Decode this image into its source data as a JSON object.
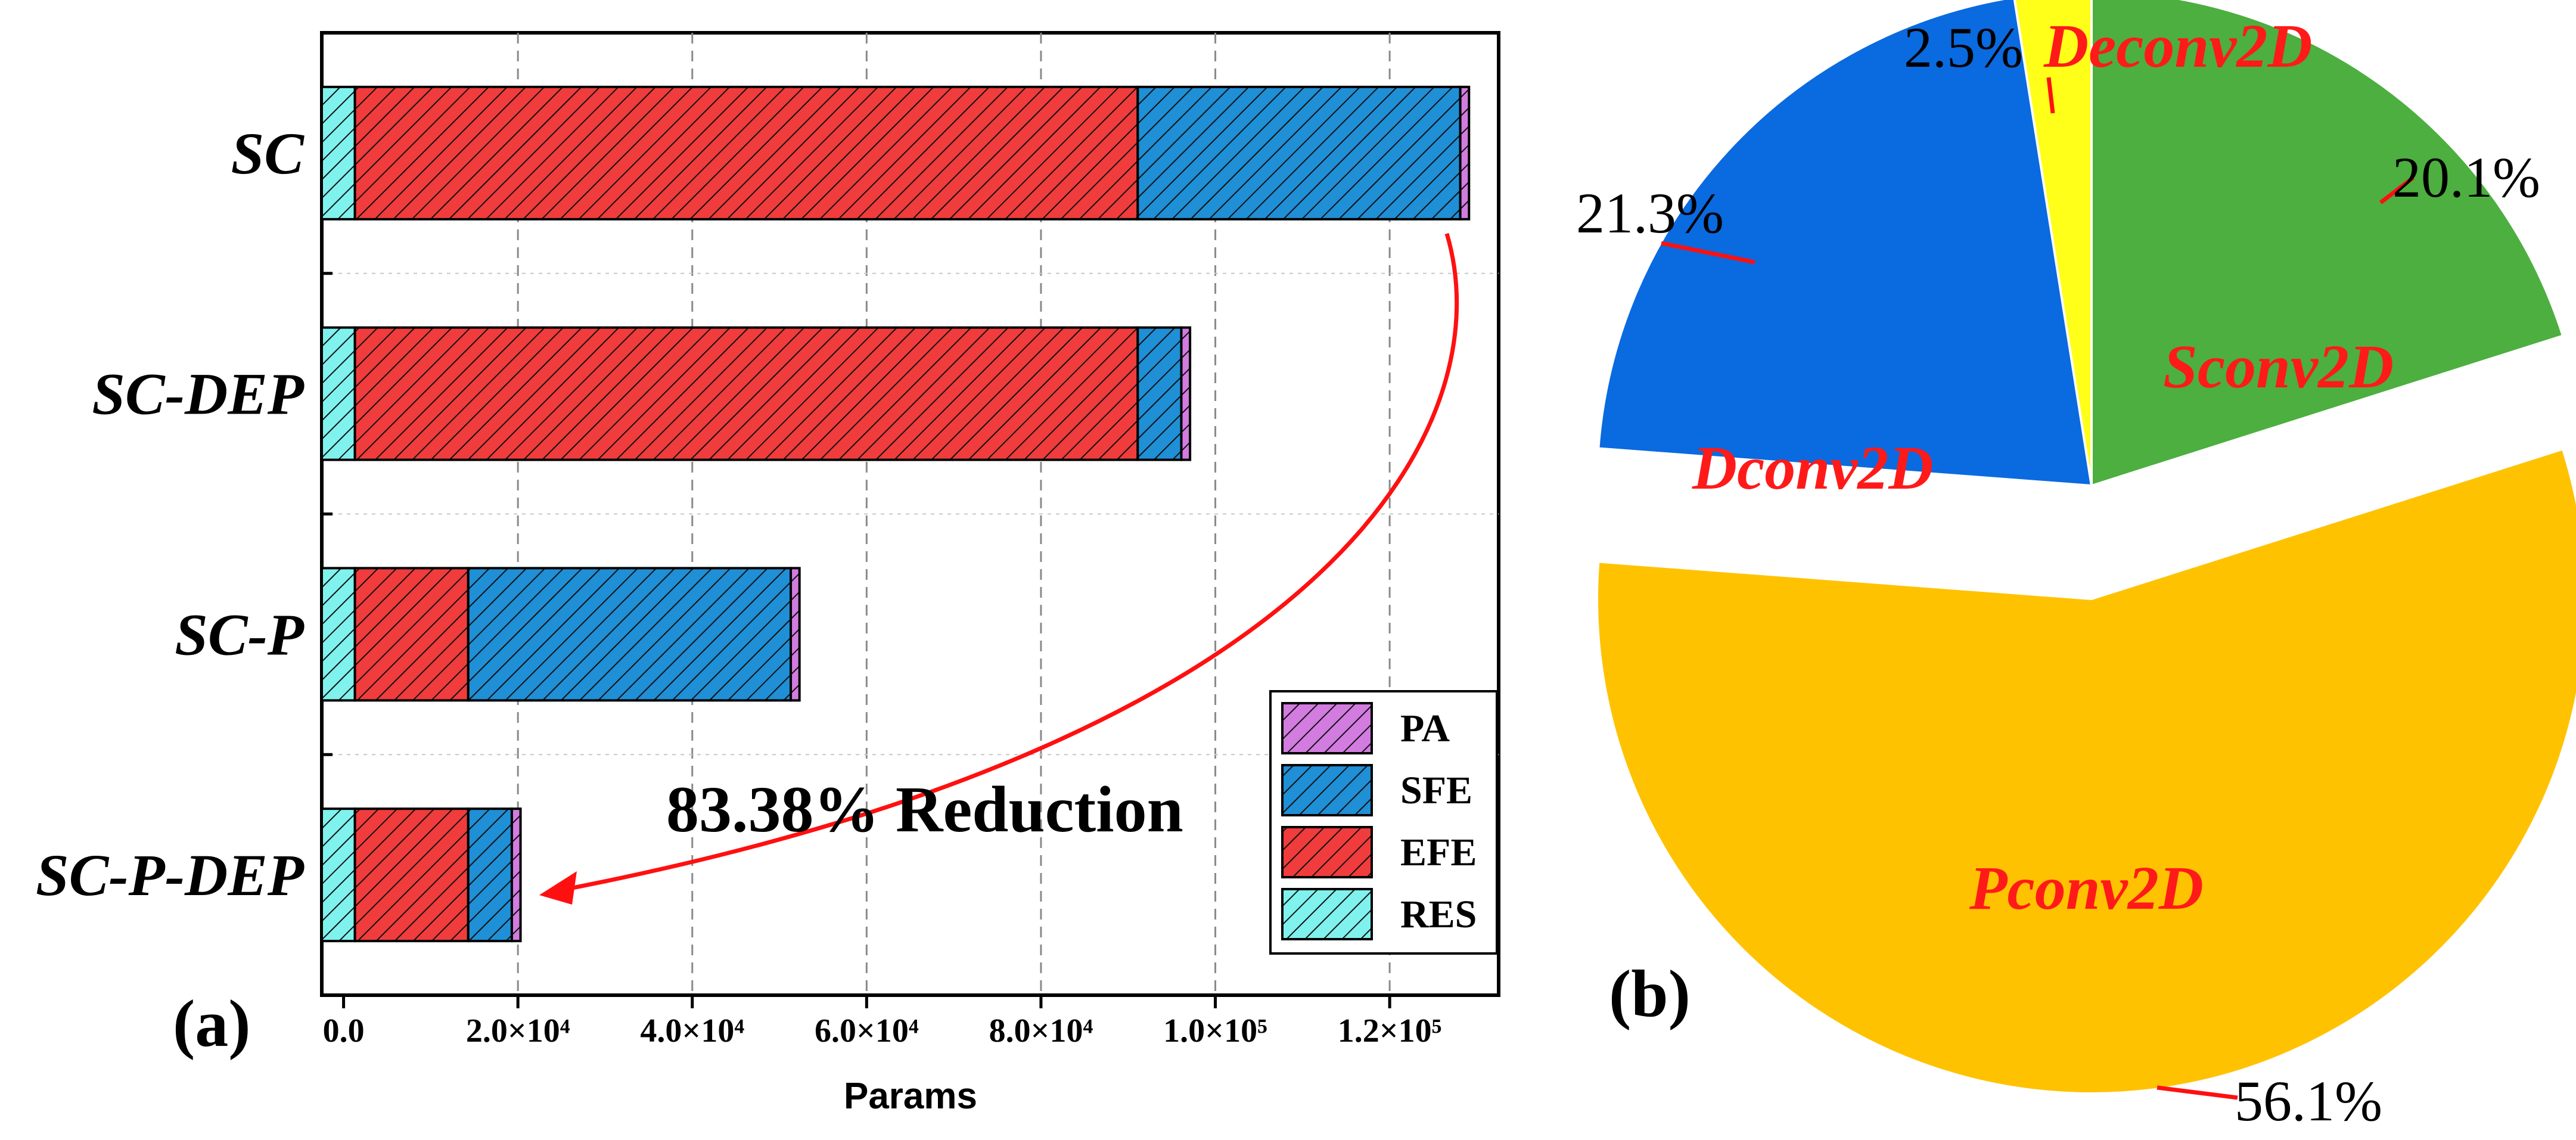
{
  "chart_data": [
    {
      "panel_label": "(a)",
      "type": "bar",
      "orientation": "horizontal",
      "stacked": true,
      "categories": [
        "SC",
        "SC-DEP",
        "SC-P",
        "SC-P-DEP"
      ],
      "series": [
        {
          "name": "RES",
          "color": "#7ff2ee",
          "values": [
            3800,
            3800,
            3800,
            3800
          ]
        },
        {
          "name": "EFE",
          "color": "#f03c3c",
          "values": [
            89800,
            89800,
            13000,
            13000
          ]
        },
        {
          "name": "SFE",
          "color": "#1f8fd6",
          "values": [
            37000,
            5000,
            37000,
            5000
          ]
        },
        {
          "name": "PA",
          "color": "#d27ce0",
          "values": [
            1000,
            1000,
            1000,
            1000
          ]
        }
      ],
      "legend_order": [
        "PA",
        "SFE",
        "EFE",
        "RES"
      ],
      "xlabel": "Params",
      "xlim": [
        -2500,
        132500
      ],
      "xticks": [
        0,
        20000,
        40000,
        60000,
        80000,
        100000,
        120000
      ],
      "xtick_labels": [
        "0.0",
        "2.0×10⁴",
        "4.0×10⁴",
        "6.0×10⁴",
        "8.0×10⁴",
        "1.0×10⁵",
        "1.2×10⁵"
      ],
      "grid": true,
      "legend_position": "bottom-right",
      "annotation": "83.38% Reduction"
    },
    {
      "panel_label": "(b)",
      "type": "pie",
      "slices": [
        {
          "label": "Sconv2D",
          "value": 20.1,
          "pct_label": "20.1%",
          "color": "#4caf3f",
          "exploded": false
        },
        {
          "label": "Pconv2D",
          "value": 56.1,
          "pct_label": "56.1%",
          "color": "#ffc200",
          "exploded": true
        },
        {
          "label": "Dconv2D",
          "value": 21.3,
          "pct_label": "21.3%",
          "color": "#0a6ae0",
          "exploded": false
        },
        {
          "label": "Deconv2D",
          "value": 2.5,
          "pct_label": "2.5%",
          "color": "#ffff1a",
          "exploded": false
        }
      ]
    }
  ]
}
